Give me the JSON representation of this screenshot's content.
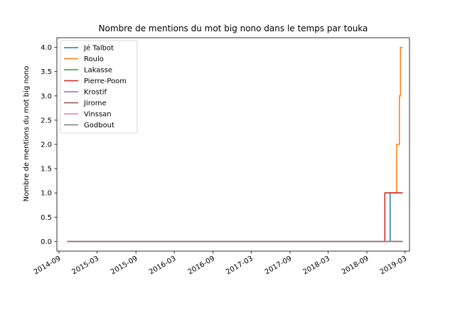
{
  "chart_data": {
    "type": "line",
    "title": "Nombre de mentions du mot big nono dans le temps par touka",
    "xlabel": "",
    "ylabel": "Nombre de mentions du mot big nono",
    "x_ticks": [
      "2014-09",
      "2015-03",
      "2015-09",
      "2016-03",
      "2016-09",
      "2017-03",
      "2017-09",
      "2018-03",
      "2018-09",
      "2019-03"
    ],
    "y_ticks": [
      "0.0",
      "0.5",
      "1.0",
      "1.5",
      "2.0",
      "2.5",
      "3.0",
      "3.5",
      "4.0"
    ],
    "xlim": [
      "2014-08-22",
      "2019-03-22"
    ],
    "ylim": [
      -0.2,
      4.2
    ],
    "grid": false,
    "legend_position": "top-left",
    "series": [
      {
        "name": "Jé Talbot",
        "color": "#1f77b4",
        "points": [
          [
            "2014-10-10",
            0
          ],
          [
            "2018-12-20",
            0
          ],
          [
            "2018-12-20",
            1
          ],
          [
            "2019-02-18",
            1
          ]
        ]
      },
      {
        "name": "Roulo",
        "color": "#ff7f0e",
        "points": [
          [
            "2014-10-10",
            0
          ],
          [
            "2018-11-25",
            0
          ],
          [
            "2018-11-25",
            1
          ],
          [
            "2019-01-20",
            1
          ],
          [
            "2019-01-20",
            2
          ],
          [
            "2019-02-02",
            2
          ],
          [
            "2019-02-02",
            3
          ],
          [
            "2019-02-07",
            3
          ],
          [
            "2019-02-07",
            4
          ],
          [
            "2019-02-18",
            4
          ]
        ]
      },
      {
        "name": "Lakasse",
        "color": "#2ca02c",
        "points": [
          [
            "2014-10-10",
            0
          ],
          [
            "2019-02-18",
            0
          ]
        ]
      },
      {
        "name": "Pierre-Poom",
        "color": "#d62728",
        "points": [
          [
            "2014-10-10",
            0
          ],
          [
            "2018-11-25",
            0
          ],
          [
            "2018-11-25",
            1
          ],
          [
            "2019-02-18",
            1
          ]
        ]
      },
      {
        "name": "Krostif",
        "color": "#9467bd",
        "points": [
          [
            "2014-10-10",
            0
          ],
          [
            "2019-02-18",
            0
          ]
        ]
      },
      {
        "name": "Jirome",
        "color": "#8c564b",
        "points": [
          [
            "2014-10-10",
            0
          ],
          [
            "2019-02-18",
            0
          ]
        ]
      },
      {
        "name": "Vinssan",
        "color": "#e377c2",
        "points": [
          [
            "2014-10-10",
            0
          ],
          [
            "2019-02-18",
            0
          ]
        ]
      },
      {
        "name": "Godbout",
        "color": "#7f7f7f",
        "points": [
          [
            "2014-10-10",
            0
          ],
          [
            "2019-02-18",
            0
          ]
        ]
      }
    ]
  }
}
